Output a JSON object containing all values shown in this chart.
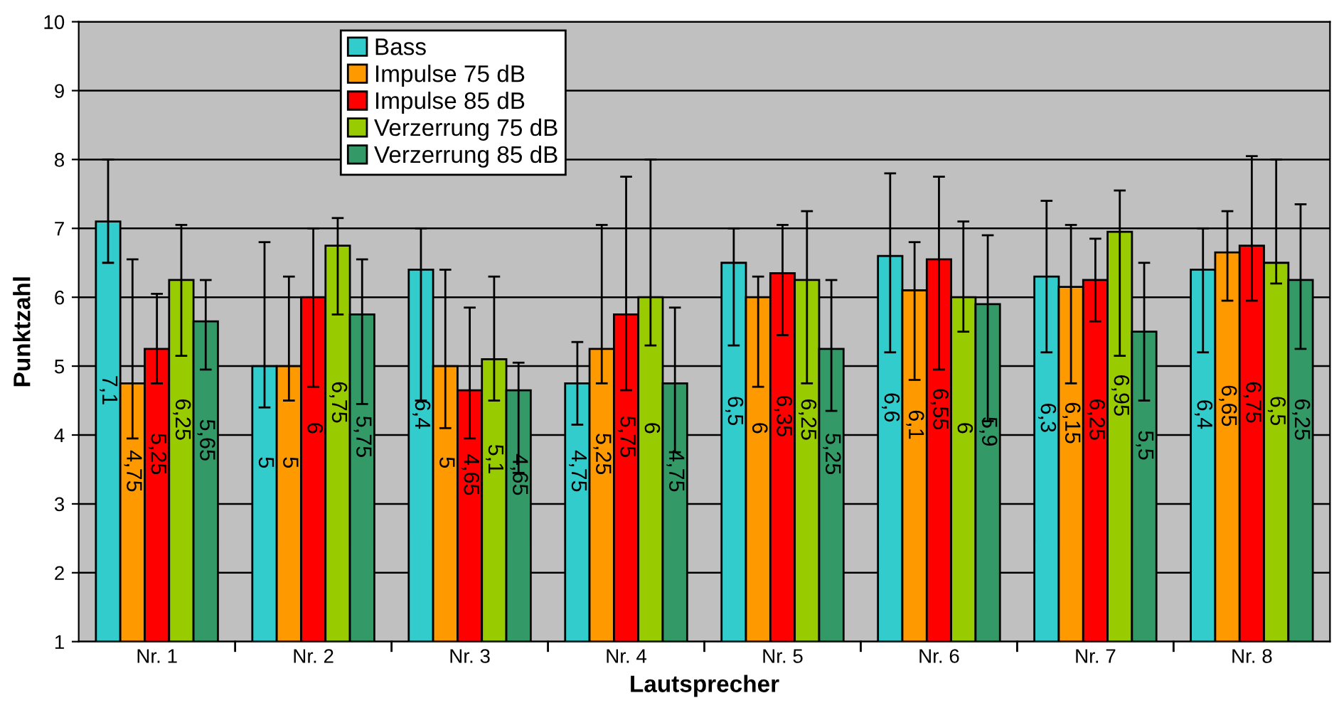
{
  "chart_data": {
    "type": "bar",
    "xlabel": "Lautsprecher",
    "ylabel": "Punktzahl",
    "categories": [
      "Nr. 1",
      "Nr. 2",
      "Nr. 3",
      "Nr. 4",
      "Nr. 5",
      "Nr. 6",
      "Nr. 7",
      "Nr. 8"
    ],
    "series": [
      {
        "name": "Bass",
        "color": "#33cccc",
        "values": [
          7.1,
          5,
          6.4,
          4.75,
          6.5,
          6.6,
          6.3,
          6.4
        ],
        "value_labels": [
          "7,1",
          "5",
          "6,4",
          "4,75",
          "6,5",
          "6,6",
          "6,3",
          "6,4"
        ],
        "errors": [
          [
            6.5,
            8.0
          ],
          [
            4.4,
            6.8
          ],
          [
            4.5,
            7.0
          ],
          [
            4.15,
            5.35
          ],
          [
            5.3,
            7.0
          ],
          [
            5.2,
            7.8
          ],
          [
            5.2,
            7.4
          ],
          [
            5.2,
            7.0
          ]
        ]
      },
      {
        "name": "Impulse 75 dB",
        "color": "#ff9900",
        "values": [
          4.75,
          5,
          5,
          5.25,
          6,
          6.1,
          6.15,
          6.65
        ],
        "value_labels": [
          "4,75",
          "5",
          "5",
          "5,25",
          "6",
          "6,1",
          "6,15",
          "6,65"
        ],
        "errors": [
          [
            3.95,
            6.55
          ],
          [
            4.5,
            6.3
          ],
          [
            4.1,
            6.4
          ],
          [
            4.75,
            7.05
          ],
          [
            4.7,
            6.3
          ],
          [
            4.8,
            6.8
          ],
          [
            4.75,
            7.05
          ],
          [
            5.95,
            7.25
          ]
        ]
      },
      {
        "name": "Impulse 85 dB",
        "color": "#ff0000",
        "values": [
          5.25,
          6,
          4.65,
          5.75,
          6.35,
          6.55,
          6.25,
          6.75
        ],
        "value_labels": [
          "5,25",
          "6",
          "4,65",
          "5,75",
          "6,35",
          "6,55",
          "6,25",
          "6,75"
        ],
        "errors": [
          [
            4.75,
            6.05
          ],
          [
            4.7,
            7.0
          ],
          [
            3.95,
            5.85
          ],
          [
            4.65,
            7.75
          ],
          [
            5.45,
            7.05
          ],
          [
            4.95,
            7.75
          ],
          [
            5.65,
            6.85
          ],
          [
            5.95,
            8.05
          ]
        ]
      },
      {
        "name": "Verzerrung 75 dB",
        "color": "#99cc00",
        "values": [
          6.25,
          6.75,
          5.1,
          6,
          6.25,
          6,
          6.95,
          6.5
        ],
        "value_labels": [
          "6,25",
          "6,75",
          "5,1",
          "6",
          "6,25",
          "6",
          "6,95",
          "6,5"
        ],
        "errors": [
          [
            5.15,
            7.05
          ],
          [
            5.75,
            7.15
          ],
          [
            4.5,
            6.3
          ],
          [
            5.3,
            8.0
          ],
          [
            4.75,
            7.25
          ],
          [
            5.5,
            7.1
          ],
          [
            5.15,
            7.55
          ],
          [
            6.2,
            8.0
          ]
        ]
      },
      {
        "name": "Verzerrung 85 dB",
        "color": "#339966",
        "values": [
          5.65,
          5.75,
          4.65,
          4.75,
          5.25,
          5.9,
          5.5,
          6.25
        ],
        "value_labels": [
          "5,65",
          "5,75",
          "4,65",
          "4,75",
          "5,25",
          "5,9",
          "5,5",
          "6,25"
        ],
        "errors": [
          [
            4.95,
            6.25
          ],
          [
            4.45,
            6.55
          ],
          [
            3.45,
            5.05
          ],
          [
            3.75,
            5.85
          ],
          [
            4.35,
            6.25
          ],
          [
            4.2,
            6.9
          ],
          [
            4.5,
            6.5
          ],
          [
            5.25,
            7.35
          ]
        ]
      }
    ],
    "ylim": [
      1,
      10
    ],
    "yticks": [
      1,
      2,
      3,
      4,
      5,
      6,
      7,
      8,
      9,
      10
    ],
    "grid": "y",
    "legend": "top left"
  }
}
